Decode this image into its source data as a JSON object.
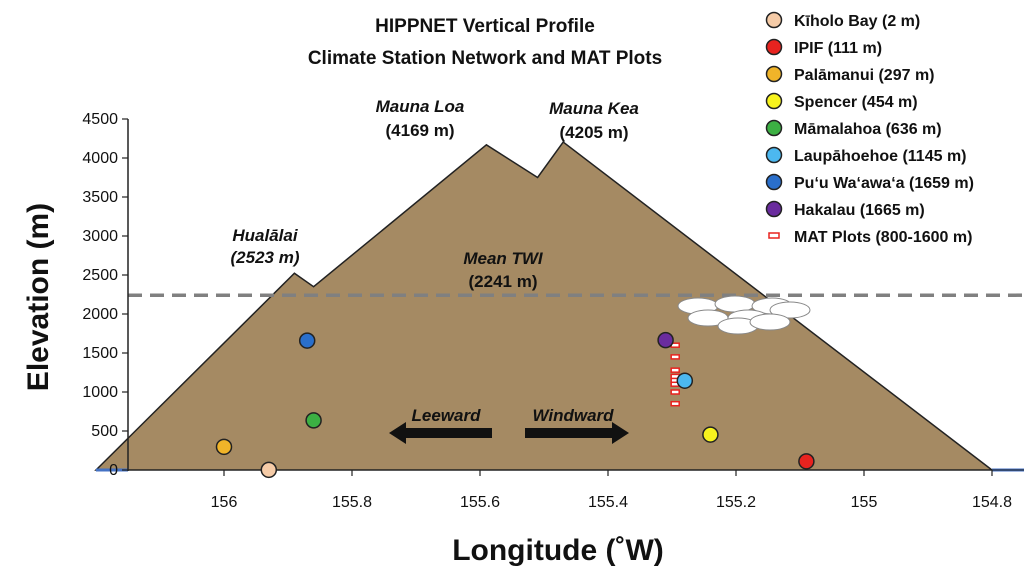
{
  "chart_data": {
    "type": "scatter",
    "title": [
      "HIPPNET Vertical Profile",
      "Climate Station Network and MAT Plots"
    ],
    "xlabel": "Longitude (˚W)",
    "ylabel": "Elevation (m)",
    "xlim": [
      156.15,
      154.75
    ],
    "ylim": [
      0,
      4500
    ],
    "x_reversed": true,
    "xticks": [
      "156",
      "155.8",
      "155.6",
      "155.4",
      "155.2",
      "155",
      "154.8"
    ],
    "xtick_values": [
      156,
      155.8,
      155.6,
      155.4,
      155.2,
      155,
      154.8
    ],
    "yticks": [
      "0",
      "500",
      "1000",
      "1500",
      "2000",
      "2500",
      "3000",
      "3500",
      "4000",
      "4500"
    ],
    "ytick_values": [
      0,
      500,
      1000,
      1500,
      2000,
      2500,
      3000,
      3500,
      4000,
      4500
    ],
    "grid": false,
    "legend_position": "top-right",
    "mountain_profile": {
      "color": "#a58a63",
      "points": [
        {
          "x": 156.2,
          "y": 0
        },
        {
          "x": 155.89,
          "y": 2523
        },
        {
          "x": 155.86,
          "y": 2350
        },
        {
          "x": 155.59,
          "y": 4169
        },
        {
          "x": 155.51,
          "y": 3750
        },
        {
          "x": 155.47,
          "y": 4205
        },
        {
          "x": 154.8,
          "y": 0
        }
      ]
    },
    "mean_twi": {
      "y": 2241,
      "color": "#808080",
      "style": "dashed"
    },
    "sea_level_color": "#4472c4",
    "series": [
      {
        "name": "Kīholo Bay (2 m)",
        "color": "#f5cba7",
        "x": 155.93,
        "y": 2
      },
      {
        "name": "IPIF (111 m)",
        "color": "#e8231f",
        "x": 155.09,
        "y": 111
      },
      {
        "name": "Palāmanui (297 m)",
        "color": "#f0b429",
        "x": 156.0,
        "y": 297
      },
      {
        "name": "Spencer (454 m)",
        "color": "#f7f31e",
        "x": 155.24,
        "y": 454
      },
      {
        "name": "Māmalahoa (636 m)",
        "color": "#3cb043",
        "x": 155.86,
        "y": 636
      },
      {
        "name": "Laupāhoehoe (1145 m)",
        "color": "#4cb8f0",
        "x": 155.28,
        "y": 1145
      },
      {
        "name": "Pu‘u Wa‘awa‘a (1659 m)",
        "color": "#2a6fcb",
        "x": 155.87,
        "y": 1659
      },
      {
        "name": "Hakalau (1665 m)",
        "color": "#6a2c9e",
        "x": 155.31,
        "y": 1665
      }
    ],
    "mat_plots": {
      "name": "MAT Plots (800-1600 m)",
      "color": "#e8231f",
      "x": 155.295,
      "y": [
        850,
        1000,
        1100,
        1150,
        1200,
        1280,
        1450,
        1600
      ]
    },
    "annotations": [
      {
        "id": "hualalai",
        "lines": [
          "Hualālai",
          "(2523 m)"
        ]
      },
      {
        "id": "mauna-loa",
        "lines": [
          "Mauna Loa",
          "(4169 m)"
        ]
      },
      {
        "id": "mauna-kea",
        "lines": [
          "Mauna Kea",
          "(4205 m)"
        ]
      },
      {
        "id": "mean-twi",
        "lines": [
          "Mean TWI",
          "(2241 m)"
        ]
      },
      {
        "id": "leeward",
        "lines": [
          "Leeward"
        ]
      },
      {
        "id": "windward",
        "lines": [
          "Windward"
        ]
      }
    ]
  }
}
